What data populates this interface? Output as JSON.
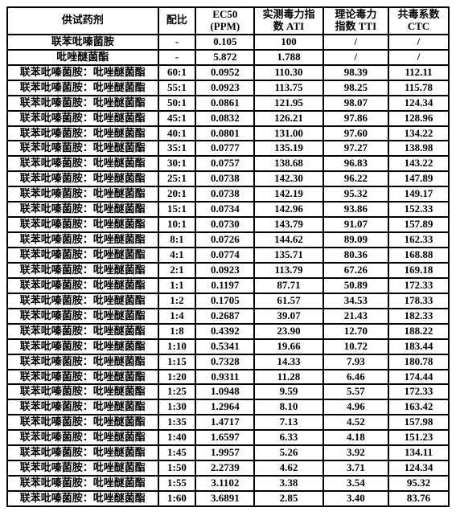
{
  "header": {
    "agent": "供试药剂",
    "ratio": "配比",
    "ec50_l1": "EC50",
    "ec50_l2": "(PPM)",
    "ati_l1": "实测毒力指",
    "ati_l2": "数 ATI",
    "tti_l1": "理论毒力",
    "tti_l2": "指数 TTI",
    "ctc_l1": "共毒系数",
    "ctc_l2": "CTC"
  },
  "rows": [
    {
      "agent": "联苯吡嗪菌胺",
      "ratio": "-",
      "ec50": "0.105",
      "ati": "100",
      "tti": "/",
      "ctc": "/"
    },
    {
      "agent": "吡唑醚菌酯",
      "ratio": "-",
      "ec50": "5.872",
      "ati": "1.788",
      "tti": "/",
      "ctc": "/"
    },
    {
      "agent": "联苯吡嗪菌胺：吡唑醚菌酯",
      "ratio": "60:1",
      "ec50": "0.0952",
      "ati": "110.30",
      "tti": "98.39",
      "ctc": "112.11"
    },
    {
      "agent": "联苯吡嗪菌胺：吡唑醚菌酯",
      "ratio": "55:1",
      "ec50": "0.0923",
      "ati": "113.75",
      "tti": "98.25",
      "ctc": "115.78"
    },
    {
      "agent": "联苯吡嗪菌胺：吡唑醚菌酯",
      "ratio": "50:1",
      "ec50": "0.0861",
      "ati": "121.95",
      "tti": "98.07",
      "ctc": "124.34"
    },
    {
      "agent": "联苯吡嗪菌胺：吡唑醚菌酯",
      "ratio": "45:1",
      "ec50": "0.0832",
      "ati": "126.21",
      "tti": "97.86",
      "ctc": "128.96"
    },
    {
      "agent": "联苯吡嗪菌胺：吡唑醚菌酯",
      "ratio": "40:1",
      "ec50": "0.0801",
      "ati": "131.00",
      "tti": "97.60",
      "ctc": "134.22"
    },
    {
      "agent": "联苯吡嗪菌胺：吡唑醚菌酯",
      "ratio": "35:1",
      "ec50": "0.0777",
      "ati": "135.19",
      "tti": "97.27",
      "ctc": "138.98"
    },
    {
      "agent": "联苯吡嗪菌胺：吡唑醚菌酯",
      "ratio": "30:1",
      "ec50": "0.0757",
      "ati": "138.68",
      "tti": "96.83",
      "ctc": "143.22"
    },
    {
      "agent": "联苯吡嗪菌胺：吡唑醚菌酯",
      "ratio": "25:1",
      "ec50": "0.0738",
      "ati": "142.30",
      "tti": "96.22",
      "ctc": "147.89"
    },
    {
      "agent": "联苯吡嗪菌胺：吡唑醚菌酯",
      "ratio": "20:1",
      "ec50": "0.0738",
      "ati": "142.19",
      "tti": "95.32",
      "ctc": "149.17"
    },
    {
      "agent": "联苯吡嗪菌胺：吡唑醚菌酯",
      "ratio": "15:1",
      "ec50": "0.0734",
      "ati": "142.96",
      "tti": "93.86",
      "ctc": "152.33"
    },
    {
      "agent": "联苯吡嗪菌胺：吡唑醚菌酯",
      "ratio": "10:1",
      "ec50": "0.0730",
      "ati": "143.79",
      "tti": "91.07",
      "ctc": "157.89"
    },
    {
      "agent": "联苯吡嗪菌胺：吡唑醚菌酯",
      "ratio": "8:1",
      "ec50": "0.0726",
      "ati": "144.62",
      "tti": "89.09",
      "ctc": "162.33"
    },
    {
      "agent": "联苯吡嗪菌胺：吡唑醚菌酯",
      "ratio": "4:1",
      "ec50": "0.0774",
      "ati": "135.71",
      "tti": "80.36",
      "ctc": "168.88"
    },
    {
      "agent": "联苯吡嗪菌胺：吡唑醚菌酯",
      "ratio": "2:1",
      "ec50": "0.0923",
      "ati": "113.79",
      "tti": "67.26",
      "ctc": "169.18"
    },
    {
      "agent": "联苯吡嗪菌胺：吡唑醚菌酯",
      "ratio": "1:1",
      "ec50": "0.1197",
      "ati": "87.71",
      "tti": "50.89",
      "ctc": "172.33"
    },
    {
      "agent": "联苯吡嗪菌胺：吡唑醚菌酯",
      "ratio": "1:2",
      "ec50": "0.1705",
      "ati": "61.57",
      "tti": "34.53",
      "ctc": "178.33"
    },
    {
      "agent": "联苯吡嗪菌胺：吡唑醚菌酯",
      "ratio": "1:4",
      "ec50": "0.2687",
      "ati": "39.07",
      "tti": "21.43",
      "ctc": "182.33"
    },
    {
      "agent": "联苯吡嗪菌胺：吡唑醚菌酯",
      "ratio": "1:8",
      "ec50": "0.4392",
      "ati": "23.90",
      "tti": "12.70",
      "ctc": "188.22"
    },
    {
      "agent": "联苯吡嗪菌胺：吡唑醚菌酯",
      "ratio": "1:10",
      "ec50": "0.5341",
      "ati": "19.66",
      "tti": "10.72",
      "ctc": "183.44"
    },
    {
      "agent": "联苯吡嗪菌胺：吡唑醚菌酯",
      "ratio": "1:15",
      "ec50": "0.7328",
      "ati": "14.33",
      "tti": "7.93",
      "ctc": "180.78"
    },
    {
      "agent": "联苯吡嗪菌胺：吡唑醚菌酯",
      "ratio": "1:20",
      "ec50": "0.9311",
      "ati": "11.28",
      "tti": "6.46",
      "ctc": "174.44"
    },
    {
      "agent": "联苯吡嗪菌胺：吡唑醚菌酯",
      "ratio": "1:25",
      "ec50": "1.0948",
      "ati": "9.59",
      "tti": "5.57",
      "ctc": "172.33"
    },
    {
      "agent": "联苯吡嗪菌胺：吡唑醚菌酯",
      "ratio": "1:30",
      "ec50": "1.2964",
      "ati": "8.10",
      "tti": "4.96",
      "ctc": "163.42"
    },
    {
      "agent": "联苯吡嗪菌胺：吡唑醚菌酯",
      "ratio": "1:35",
      "ec50": "1.4717",
      "ati": "7.13",
      "tti": "4.52",
      "ctc": "157.98"
    },
    {
      "agent": "联苯吡嗪菌胺：吡唑醚菌酯",
      "ratio": "1:40",
      "ec50": "1.6597",
      "ati": "6.33",
      "tti": "4.18",
      "ctc": "151.23"
    },
    {
      "agent": "联苯吡嗪菌胺：吡唑醚菌酯",
      "ratio": "1:45",
      "ec50": "1.9957",
      "ati": "5.26",
      "tti": "3.92",
      "ctc": "134.11"
    },
    {
      "agent": "联苯吡嗪菌胺：吡唑醚菌酯",
      "ratio": "1:50",
      "ec50": "2.2739",
      "ati": "4.62",
      "tti": "3.71",
      "ctc": "124.34"
    },
    {
      "agent": "联苯吡嗪菌胺：吡唑醚菌酯",
      "ratio": "1:55",
      "ec50": "3.1102",
      "ati": "3.38",
      "tti": "3.54",
      "ctc": "95.32"
    },
    {
      "agent": "联苯吡嗪菌胺：吡唑醚菌酯",
      "ratio": "1:60",
      "ec50": "3.6891",
      "ati": "2.85",
      "tti": "3.40",
      "ctc": "83.76"
    }
  ]
}
